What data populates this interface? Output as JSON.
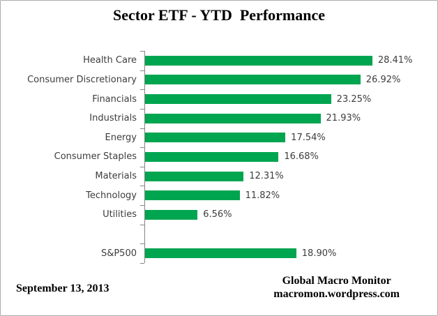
{
  "title": "Sector ETF - YTD  Performance",
  "chart_data": {
    "type": "bar",
    "orientation": "horizontal",
    "title": "Sector ETF - YTD  Performance",
    "categories": [
      "Health Care",
      "Consumer Discretionary",
      "Financials",
      "Industrials",
      "Energy",
      "Consumer Staples",
      "Materials",
      "Technology",
      "Utilities",
      "S&P500"
    ],
    "values": [
      28.41,
      26.92,
      23.25,
      21.93,
      17.54,
      16.68,
      12.31,
      11.82,
      6.56,
      18.9
    ],
    "value_labels": [
      "28.41%",
      "26.92%",
      "23.25%",
      "21.93%",
      "17.54%",
      "16.68%",
      "12.31%",
      "11.82%",
      "6.56%",
      "18.90%"
    ],
    "spacer_before_last": true,
    "xlabel": "",
    "ylabel": "",
    "xlim": [
      0,
      30
    ],
    "grid": false,
    "legend": false,
    "bar_color": "#00A550",
    "axis_color": "#848484"
  },
  "footer": {
    "date": "September 13, 2013",
    "attribution_line1": "Global Macro Monitor",
    "attribution_line2": "macromon.wordpress.com"
  }
}
